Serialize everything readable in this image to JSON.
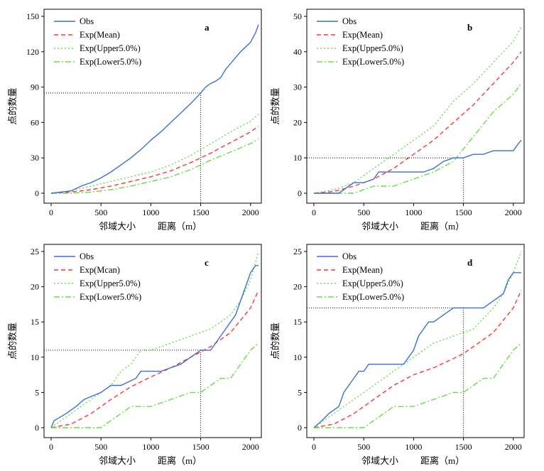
{
  "chart_data": [
    {
      "panel": "a",
      "type": "line",
      "ylabel": "点的数量",
      "xlabel_left": "邻域大小",
      "xlabel_right": "距离（m）",
      "xlim": [
        0,
        2080
      ],
      "ylim": [
        0,
        150
      ],
      "xticks": [
        0,
        500,
        1000,
        1500,
        2000
      ],
      "yticks": [
        0,
        30,
        60,
        90,
        120,
        150
      ],
      "legend_position": "top-left",
      "grid": false,
      "guide": {
        "x": 1500,
        "y": 85
      },
      "series": [
        {
          "name": "Obs",
          "color": "#3a6fd8",
          "dash": "",
          "x": [
            0,
            100,
            200,
            300,
            400,
            500,
            600,
            700,
            800,
            900,
            1000,
            1100,
            1200,
            1300,
            1400,
            1500,
            1550,
            1600,
            1650,
            1700,
            1750,
            1800,
            1850,
            1900,
            1950,
            2000,
            2050,
            2080
          ],
          "y": [
            0,
            1,
            2,
            6,
            9,
            13,
            18,
            24,
            30,
            37,
            45,
            52,
            60,
            68,
            76,
            85,
            90,
            93,
            95,
            98,
            105,
            110,
            115,
            120,
            124,
            128,
            136,
            143
          ]
        },
        {
          "name": "Exp(Mean)",
          "color": "#ff3333",
          "dash": "6,4",
          "x": [
            0,
            200,
            400,
            600,
            800,
            1000,
            1200,
            1400,
            1500,
            1600,
            1800,
            2000,
            2080
          ],
          "y": [
            0,
            1,
            3,
            6,
            10,
            14,
            19,
            26,
            30,
            34,
            43,
            52,
            57
          ]
        },
        {
          "name": "Exp(Upper5.0%)",
          "color": "#66dd44",
          "dash": "2,3",
          "x": [
            0,
            200,
            400,
            600,
            800,
            1000,
            1200,
            1400,
            1500,
            1600,
            1800,
            2000,
            2080
          ],
          "y": [
            0,
            2,
            6,
            10,
            14,
            18,
            24,
            32,
            37,
            42,
            52,
            61,
            67
          ]
        },
        {
          "name": "Exp(Lower5.0%)",
          "color": "#66dd44",
          "dash": "8,3,2,3",
          "x": [
            0,
            200,
            400,
            600,
            800,
            1000,
            1200,
            1400,
            1500,
            1600,
            1800,
            2000,
            2080
          ],
          "y": [
            0,
            0,
            1,
            3,
            6,
            10,
            14,
            20,
            24,
            28,
            35,
            42,
            46
          ]
        }
      ]
    },
    {
      "panel": "b",
      "type": "line",
      "ylabel": "点的数量",
      "xlabel_left": "邻域大小",
      "xlabel_right": "距离（m）",
      "xlim": [
        0,
        2080
      ],
      "ylim": [
        0,
        50
      ],
      "xticks": [
        0,
        500,
        1000,
        1500,
        2000
      ],
      "yticks": [
        0,
        10,
        20,
        30,
        40,
        50
      ],
      "legend_position": "top-left",
      "grid": false,
      "guide": {
        "x": 1500,
        "y": 10
      },
      "series": [
        {
          "name": "Obs",
          "color": "#3a6fd8",
          "dash": "",
          "x": [
            0,
            250,
            300,
            350,
            400,
            500,
            600,
            650,
            700,
            800,
            900,
            1000,
            1100,
            1200,
            1300,
            1400,
            1500,
            1600,
            1700,
            1800,
            1900,
            2000,
            2050,
            2080
          ],
          "y": [
            0,
            0,
            1,
            2,
            3,
            3,
            4,
            6,
            6,
            6,
            6,
            6,
            6,
            7,
            9,
            10,
            10,
            11,
            11,
            12,
            12,
            12,
            14,
            15
          ]
        },
        {
          "name": "Exp(Mean)",
          "color": "#ff3333",
          "dash": "6,4",
          "x": [
            0,
            200,
            400,
            600,
            800,
            1000,
            1200,
            1400,
            1600,
            1800,
            2000,
            2080
          ],
          "y": [
            0,
            0.5,
            2,
            4,
            7,
            11,
            15,
            20,
            25,
            31,
            37,
            40
          ]
        },
        {
          "name": "Exp(Upper5.0%)",
          "color": "#66dd44",
          "dash": "2,3",
          "x": [
            0,
            200,
            400,
            600,
            800,
            1000,
            1200,
            1400,
            1600,
            1800,
            2000,
            2080
          ],
          "y": [
            0,
            1,
            3,
            7,
            11,
            15,
            19,
            26,
            31,
            37,
            43,
            47
          ]
        },
        {
          "name": "Exp(Lower5.0%)",
          "color": "#66dd44",
          "dash": "8,3,2,3",
          "x": [
            0,
            200,
            400,
            600,
            800,
            1000,
            1200,
            1400,
            1600,
            1800,
            2000,
            2080
          ],
          "y": [
            0,
            0,
            0,
            2,
            2,
            4,
            6,
            9,
            16,
            23,
            28,
            31
          ]
        }
      ]
    },
    {
      "panel": "c",
      "type": "line",
      "ylabel": "点的数量",
      "xlabel_left": "邻域大小",
      "xlabel_right": "距离（m）",
      "xlim": [
        0,
        2080
      ],
      "ylim": [
        0,
        25
      ],
      "xticks": [
        0,
        500,
        1000,
        1500,
        2000
      ],
      "yticks": [
        0,
        5,
        10,
        15,
        20,
        25
      ],
      "legend_position": "top-left",
      "grid": false,
      "guide": {
        "x": 1500,
        "y": 11
      },
      "series": [
        {
          "name": "Obs",
          "color": "#3a6fd8",
          "dash": "",
          "x": [
            0,
            30,
            150,
            250,
            330,
            500,
            600,
            700,
            850,
            900,
            1000,
            1100,
            1300,
            1400,
            1500,
            1600,
            1650,
            1700,
            1750,
            1800,
            1850,
            1900,
            1950,
            2000,
            2050,
            2080
          ],
          "y": [
            0,
            1,
            2,
            3,
            4,
            5,
            6,
            6,
            7,
            8,
            8,
            8,
            9,
            10,
            11,
            11,
            12,
            13,
            14,
            15,
            16,
            18,
            20,
            22,
            23,
            23
          ]
        },
        {
          "name": "Exp(Mcan)",
          "color": "#ff3333",
          "dash": "6,4",
          "x": [
            0,
            200,
            400,
            600,
            800,
            1000,
            1200,
            1400,
            1600,
            1800,
            2000,
            2080
          ],
          "y": [
            0,
            0.5,
            2,
            4,
            5.8,
            7.2,
            8.5,
            10,
            11.5,
            13.5,
            17,
            19.5
          ]
        },
        {
          "name": "Exp(Upper5.0%)",
          "color": "#66dd44",
          "dash": "2,3",
          "x": [
            0,
            100,
            200,
            300,
            400,
            500,
            600,
            700,
            800,
            900,
            1000,
            1200,
            1400,
            1600,
            1800,
            1900,
            2000,
            2080
          ],
          "y": [
            0,
            1,
            2,
            3,
            4,
            5,
            6,
            8,
            9,
            11,
            11,
            12,
            13,
            14,
            16,
            18,
            21,
            25
          ]
        },
        {
          "name": "Exp(Lower5.0%)",
          "color": "#66dd44",
          "dash": "8,3,2,3",
          "x": [
            0,
            300,
            500,
            600,
            700,
            800,
            1000,
            1200,
            1400,
            1500,
            1600,
            1700,
            1800,
            1900,
            2000,
            2080
          ],
          "y": [
            0,
            0,
            0,
            1,
            2,
            3,
            3,
            4,
            5,
            5,
            6,
            7,
            7,
            9,
            11,
            12
          ]
        }
      ]
    },
    {
      "panel": "d",
      "type": "line",
      "ylabel": "点的数量",
      "xlabel_left": "邻域大小",
      "xlabel_right": "距离（m）",
      "xlim": [
        0,
        2080
      ],
      "ylim": [
        0,
        25
      ],
      "xticks": [
        0,
        500,
        1000,
        1500,
        2000
      ],
      "yticks": [
        0,
        5,
        10,
        15,
        20,
        25
      ],
      "legend_position": "top-left",
      "grid": false,
      "guide": {
        "x": 1500,
        "y": 17
      },
      "series": [
        {
          "name": "Obs",
          "color": "#3a6fd8",
          "dash": "",
          "x": [
            0,
            80,
            150,
            250,
            300,
            350,
            400,
            450,
            500,
            550,
            600,
            700,
            800,
            900,
            1000,
            1050,
            1100,
            1150,
            1200,
            1300,
            1400,
            1500,
            1600,
            1700,
            1800,
            1900,
            1950,
            2000,
            2080
          ],
          "y": [
            0,
            1,
            2,
            3,
            5,
            6,
            7,
            8,
            8,
            9,
            9,
            9,
            9,
            9,
            11,
            13,
            14,
            15,
            15,
            16,
            17,
            17,
            17,
            17,
            18,
            19,
            21,
            22,
            22
          ]
        },
        {
          "name": "Exp(Mean)",
          "color": "#ff3333",
          "dash": "6,4",
          "x": [
            0,
            200,
            400,
            600,
            800,
            1000,
            1200,
            1400,
            1500,
            1600,
            1800,
            2000,
            2080
          ],
          "y": [
            0,
            0.5,
            2,
            4,
            6,
            7.5,
            8.5,
            9.8,
            10.5,
            11.5,
            13.5,
            17,
            19.5
          ]
        },
        {
          "name": "Exp(Upper5.0%)",
          "color": "#66dd44",
          "dash": "2,3",
          "x": [
            0,
            100,
            200,
            300,
            400,
            500,
            600,
            700,
            800,
            900,
            1000,
            1100,
            1200,
            1400,
            1600,
            1800,
            1900,
            2000,
            2080
          ],
          "y": [
            0,
            1,
            2,
            3,
            4,
            5,
            6,
            7,
            8,
            9,
            10,
            11,
            12,
            13,
            14,
            17,
            19,
            22,
            25
          ]
        },
        {
          "name": "Exp(Lower5.0%)",
          "color": "#66dd44",
          "dash": "8,3,2,3",
          "x": [
            0,
            400,
            500,
            600,
            700,
            800,
            1000,
            1200,
            1400,
            1500,
            1600,
            1700,
            1800,
            1900,
            2000,
            2080
          ],
          "y": [
            0,
            0,
            0,
            1,
            2,
            3,
            3,
            4,
            5,
            5,
            6,
            7,
            7,
            9,
            11,
            12
          ]
        }
      ]
    }
  ]
}
